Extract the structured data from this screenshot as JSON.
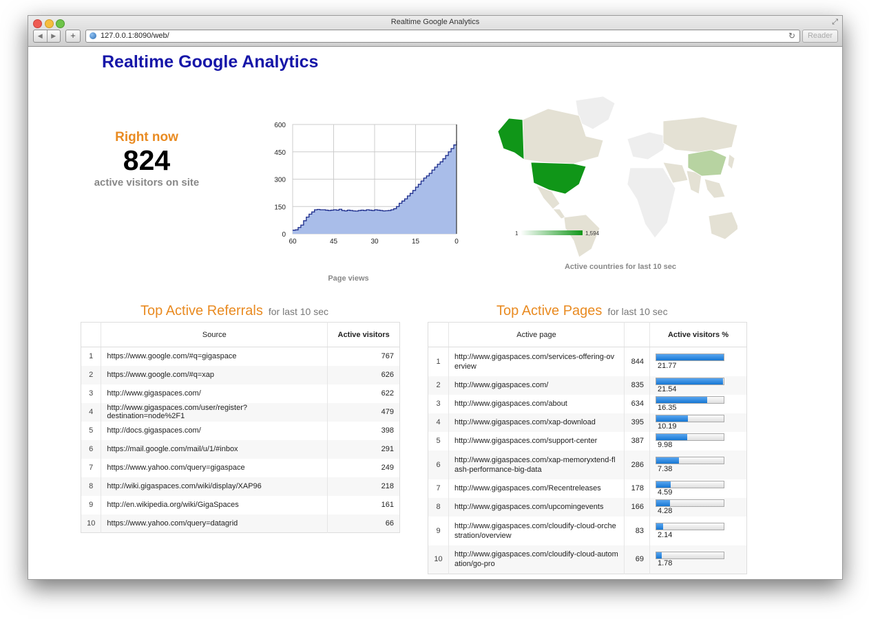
{
  "window": {
    "title": "Realtime Google Analytics",
    "url": "127.0.0.1:8090/web/",
    "reader_label": "Reader"
  },
  "page": {
    "title": "Realtime Google Analytics"
  },
  "right_now": {
    "label": "Right now",
    "count": "824",
    "subtitle": "active visitors on site"
  },
  "chart_data": [
    {
      "type": "area",
      "title": "Page views",
      "x_ticks": [
        "60",
        "45",
        "30",
        "15",
        "0"
      ],
      "y_ticks": [
        "0",
        "150",
        "300",
        "450",
        "600"
      ],
      "xlim": [
        60,
        0
      ],
      "ylim": [
        0,
        600
      ],
      "x": [
        60,
        59,
        58,
        57,
        56,
        55,
        54,
        53,
        52,
        51,
        50,
        49,
        48,
        47,
        46,
        45,
        44,
        43,
        42,
        41,
        40,
        39,
        38,
        37,
        36,
        35,
        34,
        33,
        32,
        31,
        30,
        29,
        28,
        27,
        26,
        25,
        24,
        23,
        22,
        21,
        20,
        19,
        18,
        17,
        16,
        15,
        14,
        13,
        12,
        11,
        10,
        9,
        8,
        7,
        6,
        5,
        4,
        3,
        2,
        1,
        0
      ],
      "y": [
        20,
        22,
        35,
        48,
        72,
        92,
        108,
        120,
        132,
        134,
        132,
        132,
        130,
        128,
        130,
        132,
        130,
        135,
        128,
        126,
        130,
        128,
        126,
        125,
        128,
        130,
        128,
        132,
        130,
        128,
        132,
        130,
        128,
        126,
        127,
        128,
        132,
        138,
        150,
        168,
        180,
        192,
        208,
        222,
        238,
        256,
        272,
        290,
        306,
        318,
        332,
        350,
        366,
        382,
        395,
        412,
        430,
        450,
        468,
        488,
        510
      ]
    }
  ],
  "map": {
    "legend_min": "1",
    "legend_max": "1,594",
    "caption": "Active countries for last 10 sec"
  },
  "referrals": {
    "title": "Top Active Referrals",
    "subtitle": "for last 10 sec",
    "headers": [
      "",
      "Source",
      "Active visitors"
    ],
    "rows": [
      {
        "idx": "1",
        "source": "https://www.google.com/#q=gigaspace",
        "visitors": "767"
      },
      {
        "idx": "2",
        "source": "https://www.google.com/#q=xap",
        "visitors": "626"
      },
      {
        "idx": "3",
        "source": "http://www.gigaspaces.com/",
        "visitors": "622"
      },
      {
        "idx": "4",
        "source": "http://www.gigaspaces.com/user/register?destination=node%2F1",
        "visitors": "479"
      },
      {
        "idx": "5",
        "source": "http://docs.gigaspaces.com/",
        "visitors": "398"
      },
      {
        "idx": "6",
        "source": "https://mail.google.com/mail/u/1/#inbox",
        "visitors": "291"
      },
      {
        "idx": "7",
        "source": "https://www.yahoo.com/query=gigaspace",
        "visitors": "249"
      },
      {
        "idx": "8",
        "source": "http://wiki.gigaspaces.com/wiki/display/XAP96",
        "visitors": "218"
      },
      {
        "idx": "9",
        "source": "http://en.wikipedia.org/wiki/GigaSpaces",
        "visitors": "161"
      },
      {
        "idx": "10",
        "source": "https://www.yahoo.com/query=datagrid",
        "visitors": "66"
      }
    ]
  },
  "pages": {
    "title": "Top Active Pages",
    "subtitle": "for last 10 sec",
    "headers": [
      "",
      "Active page",
      "",
      "Active visitors %"
    ],
    "rows": [
      {
        "idx": "1",
        "page": "http://www.gigaspaces.com/services-offering-overview",
        "count": "844",
        "pct": "21.77",
        "fill": 1.0
      },
      {
        "idx": "2",
        "page": "http://www.gigaspaces.com/",
        "count": "835",
        "pct": "21.54",
        "fill": 0.99
      },
      {
        "idx": "3",
        "page": "http://www.gigaspaces.com/about",
        "count": "634",
        "pct": "16.35",
        "fill": 0.75
      },
      {
        "idx": "4",
        "page": "http://www.gigaspaces.com/xap-download",
        "count": "395",
        "pct": "10.19",
        "fill": 0.47
      },
      {
        "idx": "5",
        "page": "http://www.gigaspaces.com/support-center",
        "count": "387",
        "pct": "9.98",
        "fill": 0.46
      },
      {
        "idx": "6",
        "page": "http://www.gigaspaces.com/xap-memoryxtend-flash-performance-big-data",
        "count": "286",
        "pct": "7.38",
        "fill": 0.34
      },
      {
        "idx": "7",
        "page": "http://www.gigaspaces.com/Recentreleases",
        "count": "178",
        "pct": "4.59",
        "fill": 0.21
      },
      {
        "idx": "8",
        "page": "http://www.gigaspaces.com/upcomingevents",
        "count": "166",
        "pct": "4.28",
        "fill": 0.2
      },
      {
        "idx": "9",
        "page": "http://www.gigaspaces.com/cloudify-cloud-orchestration/overview",
        "count": "83",
        "pct": "2.14",
        "fill": 0.1
      },
      {
        "idx": "10",
        "page": "http://www.gigaspaces.com/cloudify-cloud-automation/go-pro",
        "count": "69",
        "pct": "1.78",
        "fill": 0.08
      }
    ]
  },
  "colors": {
    "title": "#1616a8",
    "accent_orange": "#e98b22",
    "chart_fill": "#a9bde9",
    "chart_line": "#1a2a8a",
    "map_green": "#109618",
    "bar_blue": "#1677d3"
  }
}
